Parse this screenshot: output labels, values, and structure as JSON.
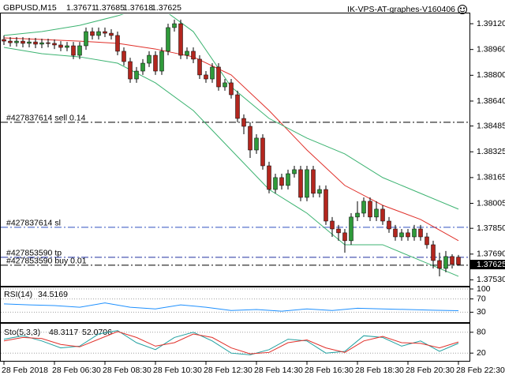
{
  "header": {
    "symbol": "GBPUSD,M15",
    "signature": "IK-VPS-AT-graphes-V160406"
  },
  "chart_data": [
    {
      "type": "candlestick",
      "categories": [
        "28 Feb 2018",
        null,
        null,
        null,
        null,
        null,
        null,
        null,
        "28 Feb 06:30",
        null,
        null,
        null,
        null,
        null,
        null,
        null,
        "28 Feb 08:30",
        null,
        null,
        null,
        null,
        null,
        null,
        null,
        "28 Feb 10:30",
        null,
        null,
        null,
        null,
        null,
        null,
        null,
        "28 Feb 12:30",
        null,
        null,
        null,
        null,
        null,
        null,
        null,
        "28 Feb 14:30",
        null,
        null,
        null,
        null,
        null,
        null,
        null,
        "28 Feb 16:30",
        null,
        null,
        null,
        null,
        null,
        null,
        null,
        "28 Feb 18:30",
        null,
        null,
        null,
        null,
        null,
        null,
        null,
        "28 Feb 20:30",
        null,
        null,
        null,
        null,
        null,
        null,
        null,
        "28 Feb 22:30"
      ],
      "open": [
        1.39022,
        1.39012,
        1.39002,
        1.39012,
        1.38998,
        1.39007,
        1.38993,
        1.39002,
        1.38998,
        1.38988,
        1.38973,
        1.38983,
        1.38924,
        1.38983,
        1.39071,
        1.39047,
        1.39071,
        1.39061,
        1.39047,
        1.38949,
        1.38885,
        1.38777,
        1.38826,
        1.38875,
        1.38924,
        1.38826,
        1.38949,
        1.39096,
        1.3912,
        1.38924,
        1.38949,
        1.389,
        1.38802,
        1.38777,
        1.38851,
        1.38728,
        1.38753,
        1.38679,
        1.38532,
        1.38483,
        1.38336,
        1.3841,
        1.38238,
        1.38091,
        1.38165,
        1.38116,
        1.38189,
        1.38214,
        1.38042,
        1.38214,
        1.38067,
        1.38091,
        1.37895,
        1.37846,
        1.37822,
        1.37773,
        1.3792,
        1.37944,
        1.38018,
        1.3792,
        1.37969,
        1.37895,
        1.37846,
        1.37797,
        1.37822,
        1.37797,
        1.37846,
        1.37797,
        1.37748,
        1.3765,
        1.37601,
        1.37675,
        1.37671
      ],
      "high": [
        1.39047,
        1.39037,
        1.39037,
        1.39037,
        1.39032,
        1.39032,
        1.39027,
        1.39027,
        1.39022,
        1.39012,
        1.39007,
        1.39007,
        1.39007,
        1.39096,
        1.39096,
        1.39096,
        1.39096,
        1.39086,
        1.39071,
        1.38973,
        1.38909,
        1.38851,
        1.389,
        1.38949,
        1.38949,
        1.38973,
        1.3912,
        1.39145,
        1.39145,
        1.38973,
        1.38973,
        1.38924,
        1.38826,
        1.38875,
        1.38875,
        1.38777,
        1.38777,
        1.38704,
        1.38557,
        1.38508,
        1.38434,
        1.38434,
        1.38263,
        1.38189,
        1.38189,
        1.38214,
        1.38238,
        1.38238,
        1.38238,
        1.38238,
        1.38116,
        1.38116,
        1.3792,
        1.37871,
        1.37846,
        1.37944,
        1.38018,
        1.38042,
        1.38042,
        1.38018,
        1.37993,
        1.3792,
        1.37871,
        1.37846,
        1.37846,
        1.37871,
        1.37871,
        1.37822,
        1.37773,
        1.37699,
        1.37709,
        1.37689,
        1.37685
      ],
      "low": [
        1.38988,
        1.38978,
        1.38978,
        1.38973,
        1.38973,
        1.38968,
        1.38968,
        1.38973,
        1.38963,
        1.38949,
        1.38949,
        1.389,
        1.389,
        1.38958,
        1.39022,
        1.39022,
        1.39037,
        1.39022,
        1.38924,
        1.3886,
        1.38753,
        1.38753,
        1.38802,
        1.38851,
        1.38802,
        1.38802,
        1.38924,
        1.39071,
        1.389,
        1.389,
        1.38875,
        1.38777,
        1.38753,
        1.38753,
        1.38704,
        1.38704,
        1.38655,
        1.38508,
        1.38434,
        1.38287,
        1.38312,
        1.38214,
        1.38067,
        1.38067,
        1.38091,
        1.38091,
        1.38165,
        1.38018,
        1.38018,
        1.38042,
        1.38042,
        1.37871,
        1.37797,
        1.37773,
        1.37699,
        1.37748,
        1.37895,
        1.3792,
        1.37895,
        1.37895,
        1.37871,
        1.37822,
        1.37773,
        1.37773,
        1.37773,
        1.37773,
        1.37773,
        1.37724,
        1.37601,
        1.37552,
        1.37577,
        1.37601,
        1.37618
      ],
      "close": [
        1.39012,
        1.39002,
        1.39012,
        1.38998,
        1.39007,
        1.38993,
        1.39002,
        1.38998,
        1.38988,
        1.38973,
        1.38983,
        1.38924,
        1.38983,
        1.39071,
        1.39047,
        1.39071,
        1.39061,
        1.39047,
        1.38949,
        1.38885,
        1.38777,
        1.38826,
        1.38875,
        1.38924,
        1.38826,
        1.38949,
        1.39096,
        1.3912,
        1.38924,
        1.38949,
        1.389,
        1.38802,
        1.38777,
        1.38851,
        1.38728,
        1.38753,
        1.38679,
        1.38532,
        1.38483,
        1.38336,
        1.3841,
        1.38238,
        1.38091,
        1.38165,
        1.38116,
        1.38189,
        1.38214,
        1.38042,
        1.38214,
        1.38067,
        1.38091,
        1.37895,
        1.37846,
        1.37822,
        1.37773,
        1.3792,
        1.37944,
        1.38018,
        1.3792,
        1.37969,
        1.37895,
        1.37846,
        1.37797,
        1.37822,
        1.37797,
        1.37846,
        1.37797,
        1.37748,
        1.3765,
        1.37601,
        1.37675,
        1.37626,
        1.37625
      ],
      "colors": {
        "up": "#2f9a3a",
        "down": "#b3261e"
      },
      "ylim": [
        1.37493,
        1.39179
      ],
      "yticks": [
        {
          "value": 1.3912,
          "label": "1.39120"
        },
        {
          "value": 1.3896,
          "label": "1.38960"
        },
        {
          "value": 1.388,
          "label": "1.38800"
        },
        {
          "value": 1.3864,
          "label": "1.38640"
        },
        {
          "value": 1.38485,
          "label": "1.38485"
        },
        {
          "value": 1.38325,
          "label": "1.38325"
        },
        {
          "value": 1.38165,
          "label": "1.38165"
        },
        {
          "value": 1.38005,
          "label": "1.38005"
        },
        {
          "value": 1.3785,
          "label": "1.37850"
        },
        {
          "value": 1.3769,
          "label": "1.37690"
        },
        {
          "value": 1.3753,
          "label": "1.37530"
        }
      ],
      "overlays": [
        {
          "color": "#e0302a",
          "x": [
            0,
            6,
            12,
            18,
            24,
            30,
            36,
            42,
            48,
            54,
            60,
            66,
            72
          ],
          "values": [
            1.39032,
            1.39022,
            1.39012,
            1.38998,
            1.38963,
            1.38914,
            1.38802,
            1.38581,
            1.38336,
            1.38116,
            1.37993,
            1.37905,
            1.37773
          ]
        },
        {
          "color": "#3cb371",
          "x": [
            0,
            6,
            12,
            18,
            24,
            30,
            36,
            42,
            48,
            54,
            60,
            66,
            72
          ],
          "values": [
            1.39047,
            1.39071,
            1.3911,
            1.39169,
            1.39243,
            1.39071,
            1.38728,
            1.38532,
            1.3841,
            1.38312,
            1.38165,
            1.38067,
            1.37969
          ]
        },
        {
          "color": "#3cb371",
          "x": [
            0,
            6,
            12,
            18,
            24,
            30,
            36,
            42,
            48,
            54,
            60,
            66,
            72
          ],
          "values": [
            1.38973,
            1.38934,
            1.38914,
            1.38875,
            1.38753,
            1.38581,
            1.38336,
            1.38091,
            1.37944,
            1.37748,
            1.37748,
            1.3765,
            1.37552
          ]
        }
      ],
      "levels": [
        {
          "label": "#427837614 sell 0.14",
          "value": 1.38508,
          "color": "#000000"
        },
        {
          "label": "#427837614 sl",
          "value": 1.37856,
          "color": "#3050c0"
        },
        {
          "label": "#427853590 tp",
          "value": 1.3767,
          "color": "#2030a0"
        },
        {
          "label": "#427853590 buy 0.01",
          "value": 1.37621,
          "color": "#000000"
        }
      ]
    },
    {
      "type": "line",
      "title": "RSI(14)",
      "grid": true,
      "ylim": [
        0,
        100
      ],
      "yticks": [
        30,
        70,
        100
      ],
      "x": [
        0,
        4,
        8,
        12,
        16,
        20,
        24,
        28,
        32,
        36,
        40,
        44,
        48,
        52,
        56,
        60,
        64,
        68,
        72
      ],
      "series": [
        {
          "color": "#1e90ff",
          "values": [
            55,
            52,
            50,
            45,
            58,
            45,
            40,
            52,
            45,
            35,
            38,
            33,
            40,
            35,
            42,
            40,
            38,
            36,
            34.5169
          ]
        }
      ]
    },
    {
      "type": "line",
      "title": "Sto(5,3,3)",
      "grid": true,
      "ylim": [
        0,
        100
      ],
      "yticks": [
        20,
        80
      ],
      "x": [
        0,
        3,
        6,
        9,
        12,
        15,
        18,
        21,
        24,
        27,
        30,
        33,
        36,
        39,
        42,
        45,
        48,
        51,
        54,
        57,
        60,
        63,
        66,
        69,
        72
      ],
      "series": [
        {
          "color": "#20a0a0",
          "values": [
            60,
            70,
            55,
            35,
            40,
            75,
            85,
            50,
            30,
            65,
            80,
            55,
            20,
            15,
            30,
            60,
            55,
            20,
            25,
            70,
            65,
            40,
            55,
            25,
            48.3117
          ]
        },
        {
          "color": "#e0302a",
          "values": [
            55,
            65,
            62,
            45,
            38,
            60,
            82,
            65,
            40,
            50,
            75,
            65,
            35,
            18,
            22,
            50,
            58,
            35,
            22,
            55,
            68,
            50,
            48,
            35,
            52.0706
          ]
        }
      ]
    }
  ]
}
